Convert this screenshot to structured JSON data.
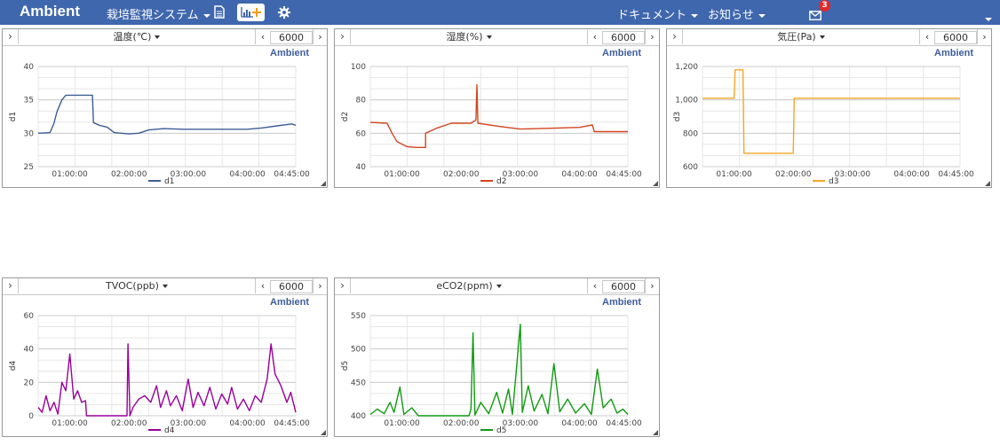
{
  "app": {
    "brand": "Ambient",
    "channel_name": "栽培監視システム",
    "nav_docs": "ドキュメント",
    "nav_news": "お知らせ",
    "mail_count": "3",
    "colors": {
      "header": "#3f67ad",
      "badge": "#e02a2a",
      "add_icon": "#f39c12"
    }
  },
  "panels": [
    {
      "title": "温度(℃)",
      "count": "6000",
      "watermark": "Ambient",
      "chart_data": {
        "type": "line",
        "title": "温度(℃)",
        "ylabel": "d1",
        "ylim": [
          25,
          40
        ],
        "yticks": [
          "25",
          "30",
          "35",
          "40"
        ],
        "xticks": [
          "01:00:00",
          "02:00:00",
          "03:00:00",
          "04:00:00",
          "04:45:00"
        ],
        "series": [
          {
            "name": "d1",
            "color": "#3d5d96",
            "points": [
              [
                "00:28",
                30.0
              ],
              [
                "00:40",
                30.1
              ],
              [
                "00:44",
                31.5
              ],
              [
                "00:47",
                33.2
              ],
              [
                "00:52",
                35.0
              ],
              [
                "00:56",
                35.7
              ],
              [
                "01:23",
                35.7
              ],
              [
                "01:24",
                31.6
              ],
              [
                "01:30",
                31.2
              ],
              [
                "01:38",
                30.9
              ],
              [
                "01:45",
                30.1
              ],
              [
                "02:00",
                29.9
              ],
              [
                "02:10",
                30.0
              ],
              [
                "02:20",
                30.5
              ],
              [
                "02:35",
                30.7
              ],
              [
                "02:55",
                30.6
              ],
              [
                "03:20",
                30.6
              ],
              [
                "03:45",
                30.6
              ],
              [
                "04:00",
                30.6
              ],
              [
                "04:15",
                30.8
              ],
              [
                "04:30",
                31.1
              ],
              [
                "04:45",
                31.4
              ],
              [
                "04:49",
                31.2
              ]
            ]
          }
        ]
      }
    },
    {
      "title": "湿度(%)",
      "count": "6000",
      "watermark": "Ambient",
      "chart_data": {
        "type": "line",
        "title": "湿度(%)",
        "ylabel": "d2",
        "ylim": [
          40,
          100
        ],
        "yticks": [
          "40",
          "60",
          "80",
          "100"
        ],
        "xticks": [
          "01:00:00",
          "02:00:00",
          "03:00:00",
          "04:00:00",
          "04:45:00"
        ],
        "series": [
          {
            "name": "d2",
            "color": "#d2461e",
            "points": [
              [
                "00:28",
                66.5
              ],
              [
                "00:45",
                66.0
              ],
              [
                "00:50",
                60.0
              ],
              [
                "00:55",
                55.0
              ],
              [
                "01:05",
                52.0
              ],
              [
                "01:15",
                51.5
              ],
              [
                "01:24",
                51.5
              ],
              [
                "01:24",
                60.0
              ],
              [
                "01:35",
                63.0
              ],
              [
                "01:50",
                66.0
              ],
              [
                "02:10",
                66.0
              ],
              [
                "02:15",
                68.0
              ],
              [
                "02:16",
                89.0
              ],
              [
                "02:17",
                66.0
              ],
              [
                "02:40",
                64.0
              ],
              [
                "03:00",
                62.5
              ],
              [
                "03:30",
                63.0
              ],
              [
                "04:00",
                63.5
              ],
              [
                "04:13",
                65.0
              ],
              [
                "04:15",
                61.0
              ],
              [
                "04:30",
                61.0
              ],
              [
                "04:49",
                61.0
              ]
            ]
          }
        ]
      }
    },
    {
      "title": "気圧(Pa)",
      "count": "6000",
      "watermark": "Ambient",
      "chart_data": {
        "type": "line",
        "title": "気圧(Pa)",
        "ylabel": "d3",
        "ylim": [
          600,
          1200
        ],
        "yticks": [
          "600",
          "800",
          "1,000",
          "1,200"
        ],
        "xticks": [
          "01:00:00",
          "02:00:00",
          "03:00:00",
          "04:00:00",
          "04:45:00"
        ],
        "series": [
          {
            "name": "d3",
            "color": "#f5a623",
            "points": [
              [
                "00:28",
                1010
              ],
              [
                "01:00",
                1010
              ],
              [
                "01:01",
                1180
              ],
              [
                "01:09",
                1180
              ],
              [
                "01:10",
                680
              ],
              [
                "02:00",
                680
              ],
              [
                "02:01",
                1010
              ],
              [
                "04:49",
                1010
              ]
            ]
          }
        ]
      }
    },
    {
      "title": "TVOC(ppb)",
      "count": "6000",
      "watermark": "Ambient",
      "chart_data": {
        "type": "line",
        "title": "TVOC(ppb)",
        "ylabel": "d4",
        "ylim": [
          0,
          60
        ],
        "yticks": [
          "0",
          "20",
          "40",
          "60"
        ],
        "xticks": [
          "01:00:00",
          "02:00:00",
          "03:00:00",
          "04:00:00",
          "04:45:00"
        ],
        "series": [
          {
            "name": "d4",
            "color": "#990099",
            "points": [
              [
                "00:28",
                5
              ],
              [
                "00:32",
                2
              ],
              [
                "00:36",
                12
              ],
              [
                "00:40",
                3
              ],
              [
                "00:44",
                8
              ],
              [
                "00:48",
                1
              ],
              [
                "00:52",
                20
              ],
              [
                "00:56",
                15
              ],
              [
                "01:00",
                37
              ],
              [
                "01:04",
                10
              ],
              [
                "01:08",
                15
              ],
              [
                "01:12",
                8
              ],
              [
                "01:16",
                9
              ],
              [
                "01:17",
                0
              ],
              [
                "01:58",
                0
              ],
              [
                "01:59",
                43
              ],
              [
                "02:01",
                0
              ],
              [
                "02:04",
                5
              ],
              [
                "02:10",
                10
              ],
              [
                "02:16",
                12
              ],
              [
                "02:22",
                8
              ],
              [
                "02:28",
                18
              ],
              [
                "02:32",
                5
              ],
              [
                "02:38",
                15
              ],
              [
                "02:42",
                6
              ],
              [
                "02:48",
                12
              ],
              [
                "02:54",
                3
              ],
              [
                "03:00",
                22
              ],
              [
                "03:05",
                5
              ],
              [
                "03:10",
                14
              ],
              [
                "03:16",
                6
              ],
              [
                "03:22",
                17
              ],
              [
                "03:28",
                4
              ],
              [
                "03:34",
                13
              ],
              [
                "03:40",
                7
              ],
              [
                "03:44",
                17
              ],
              [
                "03:50",
                4
              ],
              [
                "03:56",
                10
              ],
              [
                "04:02",
                3
              ],
              [
                "04:08",
                12
              ],
              [
                "04:14",
                8
              ],
              [
                "04:20",
                22
              ],
              [
                "04:24",
                43
              ],
              [
                "04:28",
                25
              ],
              [
                "04:34",
                18
              ],
              [
                "04:40",
                8
              ],
              [
                "04:44",
                14
              ],
              [
                "04:49",
                2
              ]
            ]
          }
        ]
      }
    },
    {
      "title": "eCO2(ppm)",
      "count": "6000",
      "watermark": "Ambient",
      "chart_data": {
        "type": "line",
        "title": "eCO2(ppm)",
        "ylabel": "d5",
        "ylim": [
          400,
          550
        ],
        "yticks": [
          "400",
          "450",
          "500",
          "550"
        ],
        "xticks": [
          "01:00:00",
          "02:00:00",
          "03:00:00",
          "04:00:00",
          "04:45:00"
        ],
        "series": [
          {
            "name": "d5",
            "color": "#119911",
            "points": [
              [
                "00:28",
                402
              ],
              [
                "00:35",
                410
              ],
              [
                "00:42",
                403
              ],
              [
                "00:48",
                420
              ],
              [
                "00:52",
                405
              ],
              [
                "00:58",
                443
              ],
              [
                "01:02",
                402
              ],
              [
                "01:10",
                412
              ],
              [
                "01:16",
                401
              ],
              [
                "01:17",
                400
              ],
              [
                "02:08",
                400
              ],
              [
                "02:10",
                410
              ],
              [
                "02:12",
                524
              ],
              [
                "02:14",
                401
              ],
              [
                "02:20",
                420
              ],
              [
                "02:28",
                403
              ],
              [
                "02:36",
                435
              ],
              [
                "02:42",
                404
              ],
              [
                "02:48",
                440
              ],
              [
                "02:52",
                402
              ],
              [
                "03:00",
                537
              ],
              [
                "03:02",
                405
              ],
              [
                "03:08",
                445
              ],
              [
                "03:14",
                407
              ],
              [
                "03:22",
                432
              ],
              [
                "03:28",
                403
              ],
              [
                "03:34",
                478
              ],
              [
                "03:40",
                406
              ],
              [
                "03:48",
                425
              ],
              [
                "03:56",
                404
              ],
              [
                "04:05",
                418
              ],
              [
                "04:12",
                402
              ],
              [
                "04:18",
                470
              ],
              [
                "04:24",
                412
              ],
              [
                "04:32",
                425
              ],
              [
                "04:38",
                404
              ],
              [
                "04:44",
                410
              ],
              [
                "04:49",
                402
              ]
            ]
          }
        ]
      }
    }
  ]
}
